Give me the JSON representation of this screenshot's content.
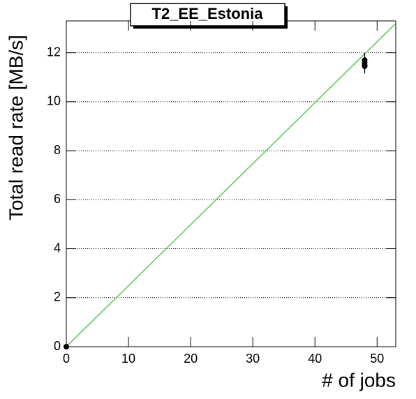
{
  "chart_data": {
    "type": "scatter",
    "title": "T2_EE_Estonia",
    "xlabel": "# of jobs",
    "ylabel": "Total read rate [MB/s]",
    "xlim": [
      0,
      53
    ],
    "ylim": [
      0,
      13.3
    ],
    "xticks": [
      0,
      10,
      20,
      30,
      40,
      50
    ],
    "yticks": [
      0,
      2,
      4,
      6,
      8,
      10,
      12
    ],
    "grid_y": true,
    "points": {
      "color": "#000000",
      "x": [
        0,
        48,
        48,
        48,
        48
      ],
      "values": [
        0,
        11.7,
        11.6,
        11.5,
        11.45
      ],
      "errors": [
        0,
        0.3,
        0.3,
        0.3,
        0.3
      ]
    },
    "fit": {
      "color": "#55c855",
      "x": [
        0,
        53
      ],
      "values": [
        0,
        13.2
      ]
    }
  }
}
